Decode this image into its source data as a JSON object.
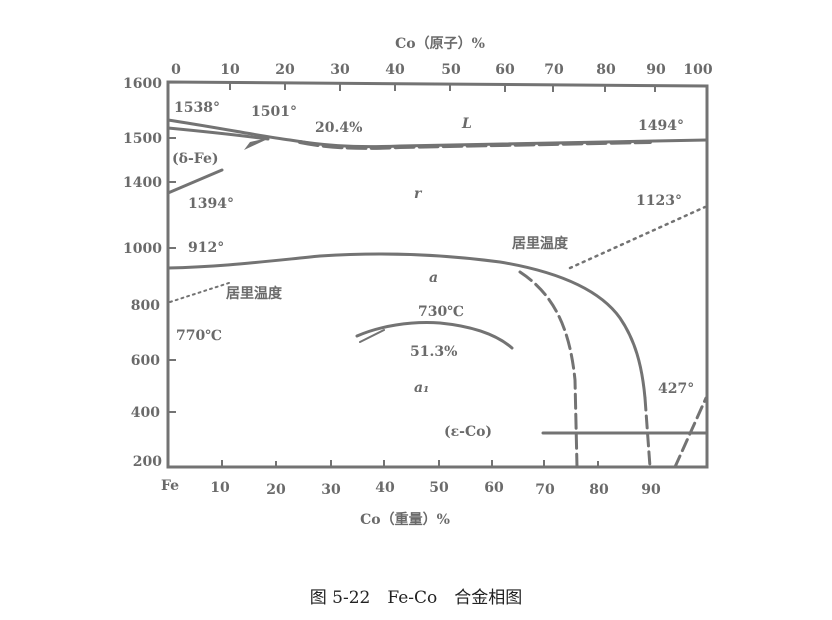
{
  "title_top_axis": "Co（原子）%",
  "title_bottom_axis": "Co（重量）%",
  "caption": "图 5-22　Fe-Co　合金相图",
  "top_ticks": [
    "0",
    "10",
    "20",
    "30",
    "40",
    "50",
    "60",
    "70",
    "80",
    "90",
    "100"
  ],
  "bottom_ticks": [
    "Fe",
    "10",
    "20",
    "30",
    "40",
    "50",
    "60",
    "70",
    "80",
    "90"
  ],
  "y_ticks": [
    "1600",
    "1500",
    "1400",
    "1000",
    "800",
    "600",
    "400",
    "200"
  ],
  "labels": {
    "t1538": "1538°",
    "t1501": "1501°",
    "pct204": "20.4%",
    "L": "L",
    "t1494": "1494°",
    "delta_fe": "(δ-Fe)",
    "t1394": "1394°",
    "gamma": "r",
    "t1123": "1123°",
    "t912": "912°",
    "curie_right": "居里温度",
    "curie_left": "居里温度",
    "alpha": "a",
    "t730": "730℃",
    "t770": "770℃",
    "pct513": "51.3%",
    "alpha1": "a₁",
    "t427": "427°",
    "eps_co": "(ε-Co)"
  },
  "colors": {
    "ink": "#737373",
    "caption": "#222222"
  }
}
